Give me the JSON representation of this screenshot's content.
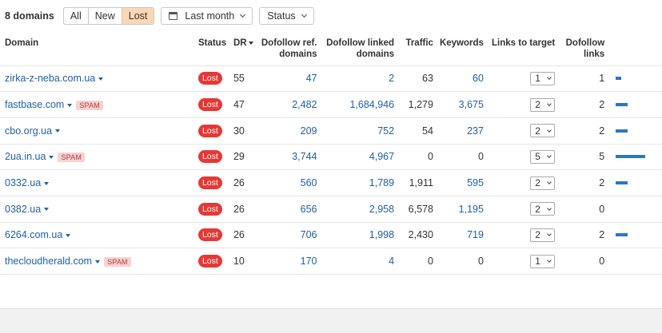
{
  "toolbar": {
    "count_label": "8 domains",
    "filters": [
      {
        "label": "All",
        "active": false
      },
      {
        "label": "New",
        "active": false
      },
      {
        "label": "Lost",
        "active": true
      }
    ],
    "date_button": {
      "label": "Last month",
      "icon": "calendar-icon"
    },
    "status_button": {
      "label": "Status",
      "icon": "chevron-down-icon"
    }
  },
  "colors": {
    "accent_active": "#fcd7b3",
    "link": "#1f5fa8",
    "lost_badge": "#e53935",
    "spam_badge": "#f9d1d1",
    "bar": "#2b75c7"
  },
  "table": {
    "headers": {
      "domain": "Domain",
      "status": "Status",
      "dr": "DR",
      "ref_domains_1": "Dofollow ref.",
      "ref_domains_2": "domains",
      "linked_domains_1": "Dofollow linked",
      "linked_domains_2": "domains",
      "traffic": "Traffic",
      "keywords": "Keywords",
      "links_to_target": "Links to target",
      "dofollow_links_1": "Dofollow",
      "dofollow_links_2": "links"
    },
    "rows": [
      {
        "domain": "zirka-z-neba.com.ua",
        "spam": "",
        "status": "Lost",
        "dr": "55",
        "ref_domains": "47",
        "linked_domains": "2",
        "traffic": "63",
        "keywords": "60",
        "links_to_target": "1",
        "dofollow_links": "1"
      },
      {
        "domain": "fastbase.com",
        "spam": "SPAM",
        "status": "Lost",
        "dr": "47",
        "ref_domains": "2,482",
        "linked_domains": "1,684,946",
        "traffic": "1,279",
        "keywords": "3,675",
        "links_to_target": "2",
        "dofollow_links": "2"
      },
      {
        "domain": "cbo.org.ua",
        "spam": "",
        "status": "Lost",
        "dr": "30",
        "ref_domains": "209",
        "linked_domains": "752",
        "traffic": "54",
        "keywords": "237",
        "links_to_target": "2",
        "dofollow_links": "2"
      },
      {
        "domain": "2ua.in.ua",
        "spam": "SPAM",
        "status": "Lost",
        "dr": "29",
        "ref_domains": "3,744",
        "linked_domains": "4,967",
        "traffic": "0",
        "keywords": "0",
        "links_to_target": "5",
        "dofollow_links": "5"
      },
      {
        "domain": "0332.ua",
        "spam": "",
        "status": "Lost",
        "dr": "26",
        "ref_domains": "560",
        "linked_domains": "1,789",
        "traffic": "1,911",
        "keywords": "595",
        "links_to_target": "2",
        "dofollow_links": "2"
      },
      {
        "domain": "0382.ua",
        "spam": "",
        "status": "Lost",
        "dr": "26",
        "ref_domains": "656",
        "linked_domains": "2,958",
        "traffic": "6,578",
        "keywords": "1,195",
        "links_to_target": "2",
        "dofollow_links": "0"
      },
      {
        "domain": "6264.com.ua",
        "spam": "",
        "status": "Lost",
        "dr": "26",
        "ref_domains": "706",
        "linked_domains": "1,998",
        "traffic": "2,430",
        "keywords": "719",
        "links_to_target": "2",
        "dofollow_links": "2"
      },
      {
        "domain": "thecloudherald.com",
        "spam": "SPAM",
        "status": "Lost",
        "dr": "10",
        "ref_domains": "170",
        "linked_domains": "4",
        "traffic": "0",
        "keywords": "0",
        "links_to_target": "1",
        "dofollow_links": "0"
      }
    ]
  }
}
